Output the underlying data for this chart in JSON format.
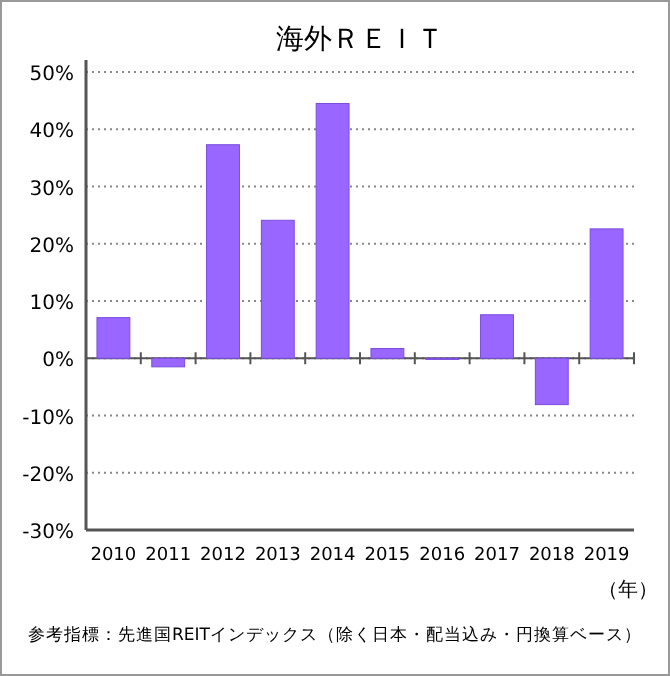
{
  "chart_data": {
    "type": "bar",
    "title": "海外ＲＥＩＴ",
    "xlabel": "（年）",
    "categories": [
      "2010",
      "2011",
      "2012",
      "2013",
      "2014",
      "2015",
      "2016",
      "2017",
      "2018",
      "2019"
    ],
    "values": [
      7.1,
      -1.5,
      37.3,
      24.1,
      44.5,
      1.7,
      -0.2,
      7.6,
      -8.1,
      22.6
    ],
    "color": "#9966ff",
    "ylim": [
      -30,
      50
    ],
    "yticks": [
      {
        "value": -30,
        "label": "-30%"
      },
      {
        "value": -20,
        "label": "-20%"
      },
      {
        "value": -10,
        "label": "-10%"
      },
      {
        "value": 0,
        "label": "0%"
      },
      {
        "value": 10,
        "label": "10%"
      },
      {
        "value": 20,
        "label": "20%"
      },
      {
        "value": 30,
        "label": "30%"
      },
      {
        "value": 40,
        "label": "40%"
      },
      {
        "value": 50,
        "label": "50%"
      }
    ],
    "grid": "y",
    "annotations": [
      "参考指標：先進国REITインデックス（除く日本・配当込み・円換算ベース）"
    ]
  }
}
